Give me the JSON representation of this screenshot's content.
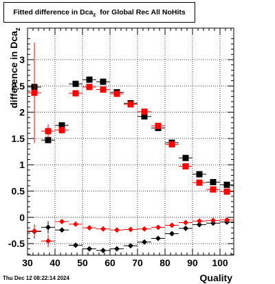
{
  "title": {
    "main": "Fitted difference in Dca",
    "subscript": "z",
    "suffix": "for Global Rec All NoHits"
  },
  "ylabel": {
    "main": "difference in Dca",
    "subscript": "z"
  },
  "timestamp": "Thu Dec 12 08:22:14 2024",
  "chart_data": {
    "type": "scatter",
    "xlabel": "Quality",
    "ylabel": "difference in Dca z",
    "xlim": [
      30,
      105
    ],
    "ylim": [
      -0.72,
      3.6
    ],
    "grid": true,
    "xticks": [
      30,
      40,
      50,
      60,
      70,
      80,
      90,
      100
    ],
    "yticks": [
      -0.5,
      0,
      0.5,
      1,
      1.5,
      2,
      2.5,
      3
    ],
    "yticklabels": [
      "-0.5",
      "0",
      "0.5",
      "1",
      "1.5",
      "2",
      "2.5",
      "3"
    ],
    "series": [
      {
        "marker": "square",
        "color": "#000000",
        "x": [
          32.5,
          37.5,
          42.5,
          47.5,
          52.5,
          57.5,
          62.5,
          67.5,
          72.5,
          77.5,
          82.5,
          87.5,
          92.5,
          97.5,
          102.5
        ],
        "y": [
          2.48,
          1.47,
          1.75,
          2.54,
          2.62,
          2.58,
          2.38,
          2.17,
          1.92,
          1.7,
          1.42,
          1.13,
          0.82,
          0.67,
          0.62
        ],
        "yerr": [
          0.09,
          0.05,
          0.05,
          0.02,
          0.02,
          0.02,
          0.02,
          0.02,
          0.02,
          0.02,
          0.02,
          0.02,
          0.01,
          0.01,
          0.01
        ]
      },
      {
        "marker": "square",
        "color": "#ff0000",
        "x": [
          32.5,
          37.5,
          42.5,
          47.5,
          52.5,
          57.5,
          62.5,
          67.5,
          72.5,
          77.5,
          82.5,
          87.5,
          92.5,
          97.5,
          102.5
        ],
        "y": [
          2.37,
          1.64,
          1.66,
          2.36,
          2.48,
          2.43,
          2.35,
          2.15,
          2.01,
          1.74,
          1.39,
          0.97,
          0.66,
          0.53,
          0.49
        ],
        "yerr": [
          0.96,
          0.13,
          0.07,
          0.02,
          0.02,
          0.02,
          0.02,
          0.02,
          0.02,
          0.02,
          0.02,
          0.02,
          0.01,
          0.01,
          0.01
        ]
      },
      {
        "marker": "diamond",
        "color": "#000000",
        "x": [
          32.5,
          37.5,
          42.5,
          47.5,
          52.5,
          57.5,
          62.5,
          67.5,
          72.5,
          77.5,
          82.5,
          87.5,
          92.5,
          97.5,
          102.5
        ],
        "y": [
          -0.27,
          -0.19,
          -0.24,
          -0.53,
          -0.6,
          -0.63,
          -0.6,
          -0.54,
          -0.47,
          -0.4,
          -0.31,
          -0.21,
          -0.14,
          -0.11,
          -0.09
        ],
        "yerr": [
          0.13,
          0.12,
          0.03,
          0.02,
          0.01,
          0.01,
          0.01,
          0.01,
          0.01,
          0.01,
          0.01,
          0.01,
          0.01,
          0.01,
          0.01
        ]
      },
      {
        "marker": "diamond",
        "color": "#ff0000",
        "x": [
          32.5,
          37.5,
          42.5,
          47.5,
          52.5,
          57.5,
          62.5,
          67.5,
          72.5,
          77.5,
          82.5,
          87.5,
          92.5,
          97.5,
          102.5
        ],
        "y": [
          -0.26,
          -0.45,
          -0.08,
          -0.13,
          -0.2,
          -0.22,
          -0.24,
          -0.23,
          -0.22,
          -0.19,
          -0.15,
          -0.1,
          -0.07,
          -0.06,
          -0.05
        ],
        "yerr": [
          0.1,
          0.12,
          0.03,
          0.02,
          0.01,
          0.01,
          0.01,
          0.01,
          0.01,
          0.01,
          0.01,
          0.01,
          0.01,
          0.01,
          0.01
        ]
      }
    ]
  }
}
